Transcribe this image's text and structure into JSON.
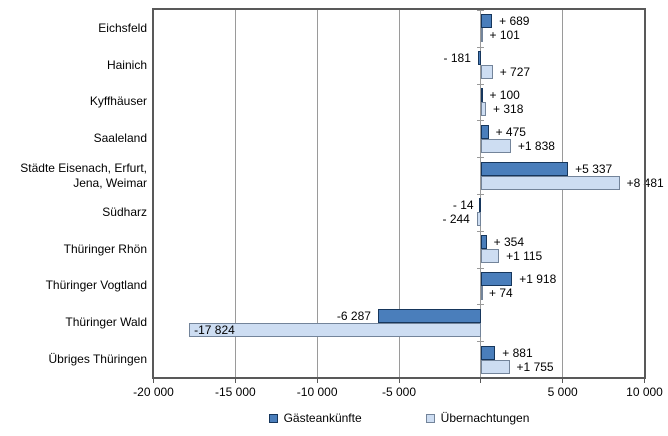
{
  "chart_data": {
    "type": "bar",
    "orientation": "horizontal",
    "title": "",
    "xlabel": "",
    "ylabel": "",
    "xlim": [
      -20000,
      10000
    ],
    "grid": true,
    "legend_position": "bottom",
    "x_ticks": [
      {
        "value": -20000,
        "label": "-20 000"
      },
      {
        "value": -15000,
        "label": "-15 000"
      },
      {
        "value": -10000,
        "label": "-10 000"
      },
      {
        "value": -5000,
        "label": "-5 000"
      },
      {
        "value": 0,
        "label": ""
      },
      {
        "value": 5000,
        "label": "5 000"
      },
      {
        "value": 10000,
        "label": "10 000"
      }
    ],
    "categories": [
      "Eichsfeld",
      "Hainich",
      "Kyffhäuser",
      "Saaleland",
      "Städte Eisenach, Erfurt, Jena, Weimar",
      "Südharz",
      "Thüringer Rhön",
      "Thüringer Vogtland",
      "Thüringer Wald",
      "Übriges Thüringen"
    ],
    "series": [
      {
        "name": "Gästeankünfte",
        "fill_color": "#4a7ebb",
        "border_color": "#16365c",
        "values": [
          689,
          -181,
          100,
          475,
          5337,
          -14,
          354,
          1918,
          -6287,
          881
        ],
        "value_labels": [
          "+ 689",
          "- 181",
          "+ 100",
          "+ 475",
          "+5 337",
          "- 14",
          "+ 354",
          "+1 918",
          "-6 287",
          "+ 881"
        ]
      },
      {
        "name": "Übernachtungen",
        "fill_color": "#cdddf2",
        "border_color": "#73849a",
        "values": [
          101,
          727,
          318,
          1838,
          8481,
          -244,
          1115,
          74,
          -17824,
          1755
        ],
        "value_labels": [
          "+ 101",
          "+ 727",
          "+ 318",
          "+1 838",
          "+8 481",
          "- 244",
          "+1 115",
          "+ 74",
          "-17 824",
          "+1 755"
        ]
      }
    ],
    "colors": {
      "gridline": "#9a9a9a",
      "frame": "#595959",
      "text": "#000000"
    }
  }
}
